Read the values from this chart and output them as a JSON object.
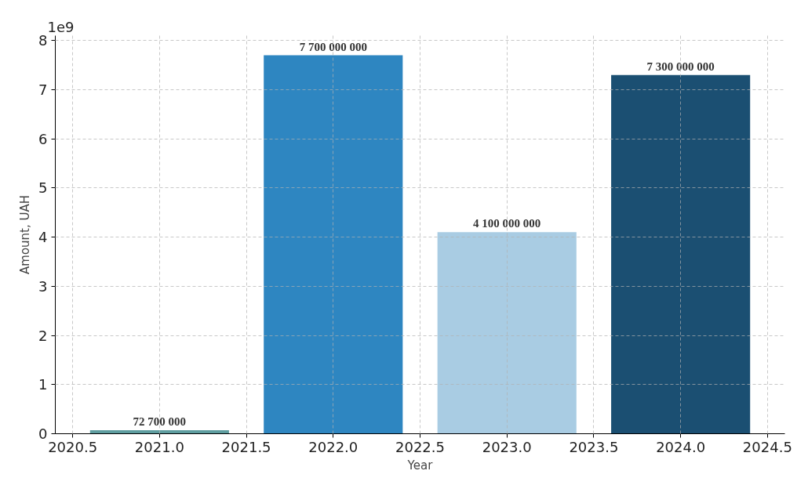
{
  "chart_data": {
    "type": "bar",
    "xlabel": "Year",
    "ylabel": "Amount, UAH",
    "x": [
      2021,
      2022,
      2023,
      2024
    ],
    "values": [
      0.0727,
      7.7,
      4.1,
      7.3
    ],
    "colors": [
      "#5f9ea0",
      "#2e86c1",
      "#a9cce3",
      "#1b4f72"
    ],
    "xlim": [
      2020.4,
      2024.6
    ],
    "xticks": [
      {
        "value": 2020.5,
        "label": "2020.5"
      },
      {
        "value": 2021,
        "label": "2021.0"
      },
      {
        "value": 2021.5,
        "label": "2021.5"
      },
      {
        "value": 2022,
        "label": "2022.0"
      },
      {
        "value": 2022.5,
        "label": "2022.5"
      },
      {
        "value": 2023,
        "label": "2023.0"
      },
      {
        "value": 2023.5,
        "label": "2023.5"
      },
      {
        "value": 2024,
        "label": "2024.0"
      },
      {
        "value": 2024.5,
        "label": "2024.5"
      }
    ],
    "ylim": [
      0,
      8.1
    ],
    "yticks": [
      0,
      1,
      2,
      3,
      4,
      5,
      6,
      7,
      8
    ],
    "annotations": [
      "1e9",
      {
        "text": "72 700 000",
        "x": 2021,
        "y": 0.0727
      },
      {
        "text": "7 700 000 000",
        "x": 2022,
        "y": 7.7
      },
      {
        "text": "4 100 000 000",
        "x": 2023,
        "y": 4.1
      },
      {
        "text": "7 300 000 000",
        "x": 2024,
        "y": 7.3
      }
    ],
    "grid": true,
    "line_style": "dashed"
  }
}
